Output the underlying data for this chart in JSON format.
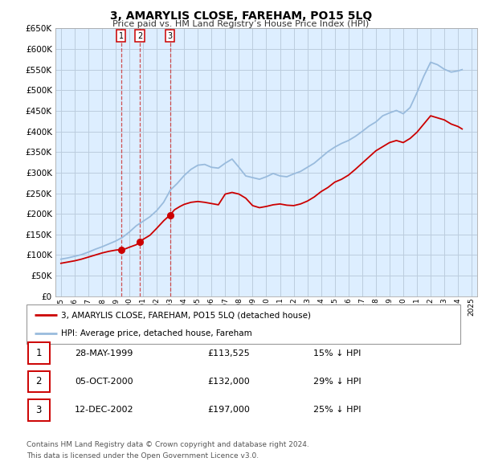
{
  "title": "3, AMARYLIS CLOSE, FAREHAM, PO15 5LQ",
  "subtitle": "Price paid vs. HM Land Registry’s House Price Index (HPI)",
  "ylim": [
    0,
    650000
  ],
  "yticks": [
    0,
    50000,
    100000,
    150000,
    200000,
    250000,
    300000,
    350000,
    400000,
    450000,
    500000,
    550000,
    600000,
    650000
  ],
  "ytick_labels": [
    "£0",
    "£50K",
    "£100K",
    "£150K",
    "£200K",
    "£250K",
    "£300K",
    "£350K",
    "£400K",
    "£450K",
    "£500K",
    "£550K",
    "£600K",
    "£650K"
  ],
  "xlim_start": 1994.6,
  "xlim_end": 2025.4,
  "xticks": [
    1995,
    1996,
    1997,
    1998,
    1999,
    2000,
    2001,
    2002,
    2003,
    2004,
    2005,
    2006,
    2007,
    2008,
    2009,
    2010,
    2011,
    2012,
    2013,
    2014,
    2015,
    2016,
    2017,
    2018,
    2019,
    2020,
    2021,
    2022,
    2023,
    2024,
    2025
  ],
  "sale_color": "#cc0000",
  "hpi_color": "#99bbdd",
  "vline_color": "#cc3333",
  "chart_bg": "#ddeeff",
  "grid_color": "#bbccdd",
  "sale_points": [
    {
      "year": 1999.41,
      "price": 113525,
      "label": "1"
    },
    {
      "year": 2000.76,
      "price": 132000,
      "label": "2"
    },
    {
      "year": 2002.96,
      "price": 197000,
      "label": "3"
    }
  ],
  "table_rows": [
    {
      "num": "1",
      "date": "28-MAY-1999",
      "price": "£113,525",
      "pct": "15% ↓ HPI"
    },
    {
      "num": "2",
      "date": "05-OCT-2000",
      "price": "£132,000",
      "pct": "29% ↓ HPI"
    },
    {
      "num": "3",
      "date": "12-DEC-2002",
      "price": "£197,000",
      "pct": "25% ↓ HPI"
    }
  ],
  "legend_line1": "3, AMARYLIS CLOSE, FAREHAM, PO15 5LQ (detached house)",
  "legend_line2": "HPI: Average price, detached house, Fareham",
  "footnote1": "Contains HM Land Registry data © Crown copyright and database right 2024.",
  "footnote2": "This data is licensed under the Open Government Licence v3.0."
}
